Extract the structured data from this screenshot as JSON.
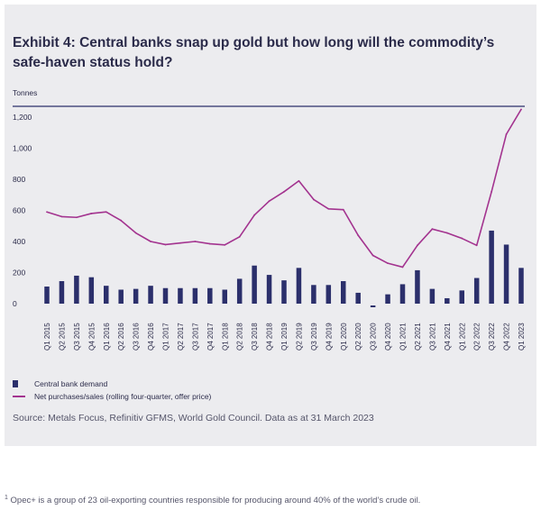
{
  "title": "Exhibit 4: Central banks snap up gold but how long will the commodity’s safe-haven status hold?",
  "unit_label": "Tonnes",
  "source": "Source: Metals Focus, Refinitiv GFMS, World Gold Council. Data as at 31 March 2023",
  "footnote": {
    "marker": "1",
    "text": "Opec+ is a group of 23 oil-exporting countries responsible for producing around 40% of the world’s crude oil."
  },
  "colors": {
    "bar": "#2b2f6b",
    "line": "#a3338f",
    "panel": "#ececef",
    "axis": "#2b2f6b"
  },
  "chart_data": {
    "type": "bar",
    "categories": [
      "Q1 2015",
      "Q2 2015",
      "Q3 2015",
      "Q4 2015",
      "Q1 2016",
      "Q2 2016",
      "Q3 2016",
      "Q4 2016",
      "Q1 2017",
      "Q2 2017",
      "Q3 2017",
      "Q4 2017",
      "Q1 2018",
      "Q2 2018",
      "Q3 2018",
      "Q4 2018",
      "Q1 2019",
      "Q2 2019",
      "Q3 2019",
      "Q4 2019",
      "Q1 2020",
      "Q2 2020",
      "Q3 2020",
      "Q4 2020",
      "Q1 2021",
      "Q2 2021",
      "Q3 2021",
      "Q4 2021",
      "Q1 2022",
      "Q2 2022",
      "Q3 2022",
      "Q4 2022",
      "Q1 2023"
    ],
    "series": [
      {
        "name": "Central bank demand",
        "kind": "bar",
        "values": [
          110,
          145,
          180,
          170,
          115,
          90,
          95,
          115,
          100,
          100,
          100,
          100,
          90,
          160,
          245,
          185,
          150,
          230,
          120,
          120,
          145,
          70,
          -10,
          60,
          125,
          215,
          95,
          35,
          85,
          165,
          470,
          380,
          230
        ]
      },
      {
        "name": "Net purchases/sales (rolling four-quarter, offer price)",
        "kind": "line",
        "values": [
          590,
          560,
          555,
          580,
          590,
          535,
          455,
          400,
          380,
          390,
          400,
          385,
          378,
          430,
          570,
          660,
          720,
          790,
          670,
          610,
          605,
          440,
          310,
          260,
          235,
          375,
          480,
          455,
          420,
          375,
          720,
          1090,
          1250
        ]
      }
    ],
    "ylim": [
      -30,
      1300
    ],
    "yticks": [
      0,
      200,
      400,
      600,
      800,
      1000,
      1200
    ],
    "ytick_labels": [
      "0",
      "200",
      "400",
      "600",
      "800",
      "1,000",
      "1,200"
    ],
    "ylabel": "Tonnes",
    "legend_position": "bottom-left",
    "grid": false
  }
}
